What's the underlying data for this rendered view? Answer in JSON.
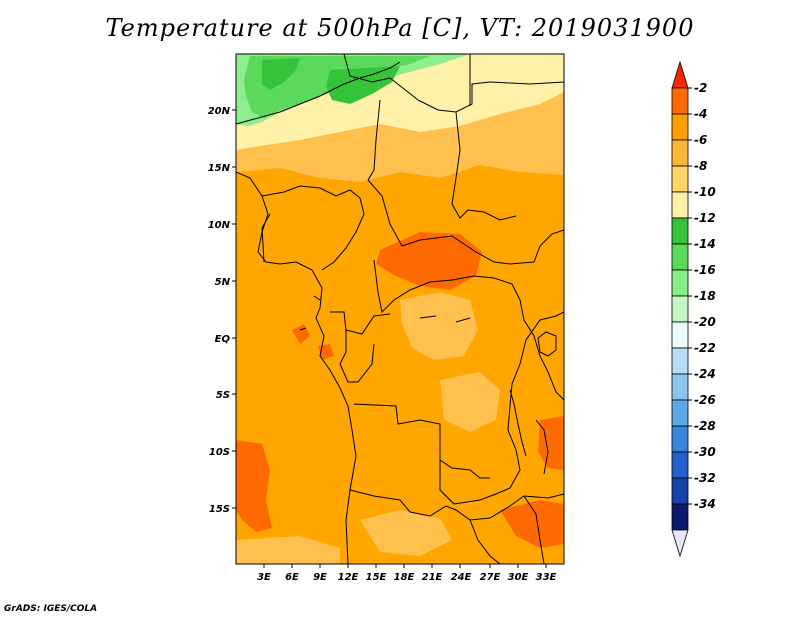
{
  "title": "Temperature at 500hPa [C], VT: 2019031900",
  "credit": "GrADS: IGES/COLA",
  "axes": {
    "lat_labels": [
      "20N",
      "15N",
      "10N",
      "5N",
      "EQ",
      "5S",
      "10S",
      "15S"
    ],
    "lon_labels": [
      "3E",
      "6E",
      "9E",
      "12E",
      "15E",
      "18E",
      "21E",
      "24E",
      "27E",
      "30E",
      "33E"
    ]
  },
  "colorbar": {
    "labels": [
      "-2",
      "-4",
      "-6",
      "-8",
      "-10",
      "-12",
      "-14",
      "-16",
      "-18",
      "-20",
      "-22",
      "-24",
      "-26",
      "-28",
      "-30",
      "-32",
      "-34"
    ],
    "colors": [
      "#ff2600",
      "#ff6a00",
      "#ff9e00",
      "#ffb733",
      "#ffd466",
      "#fff2a8",
      "#33c43a",
      "#5ad95a",
      "#87ee87",
      "#c2f7c2",
      "#ecfcfc",
      "#b4dcf4",
      "#8cc4ee",
      "#5ea8e6",
      "#3a86dc",
      "#2060c8",
      "#1442a8",
      "#0a1a6e",
      "#e6e6fa"
    ]
  },
  "field": {
    "dominant": "#ff9e00",
    "colors": {
      "c2": "#ff6a00",
      "c4": "#ff8c00",
      "c6": "#ffa600",
      "c8": "#ffc04d",
      "c10": "#fff1a8",
      "c12": "#33c43a",
      "c14": "#5ad95a",
      "c16": "#8eee8e"
    }
  }
}
